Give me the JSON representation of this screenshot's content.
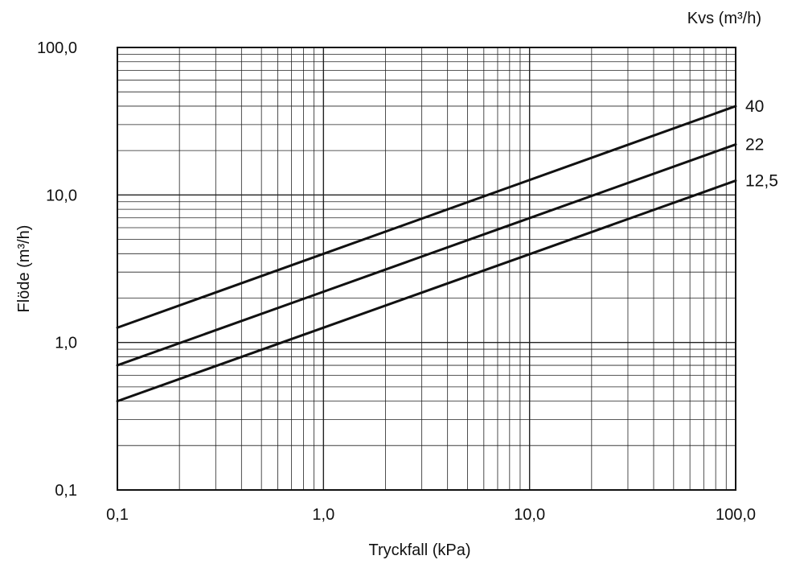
{
  "chart_data": {
    "type": "line",
    "title": "",
    "xlabel": "Tryckfall (kPa)",
    "ylabel": "Flöde (m³/h)",
    "legend_title": "Kvs (m³/h)",
    "x_scale": "log",
    "y_scale": "log",
    "xlim": [
      0.1,
      100
    ],
    "ylim": [
      0.1,
      100
    ],
    "x_ticks": [
      0.1,
      1,
      10,
      100
    ],
    "x_tick_labels": [
      "0,1",
      "1,0",
      "10,0",
      "100,0"
    ],
    "y_ticks": [
      0.1,
      1,
      10,
      100
    ],
    "y_tick_labels": [
      "0,1",
      "1,0",
      "10,0",
      "100,0"
    ],
    "grid": true,
    "series": [
      {
        "name": "40",
        "x": [
          0.1,
          100
        ],
        "y": [
          1.26,
          40
        ]
      },
      {
        "name": "22",
        "x": [
          0.1,
          100
        ],
        "y": [
          0.7,
          22
        ]
      },
      {
        "name": "12,5",
        "x": [
          0.1,
          100
        ],
        "y": [
          0.4,
          12.5
        ]
      }
    ]
  }
}
